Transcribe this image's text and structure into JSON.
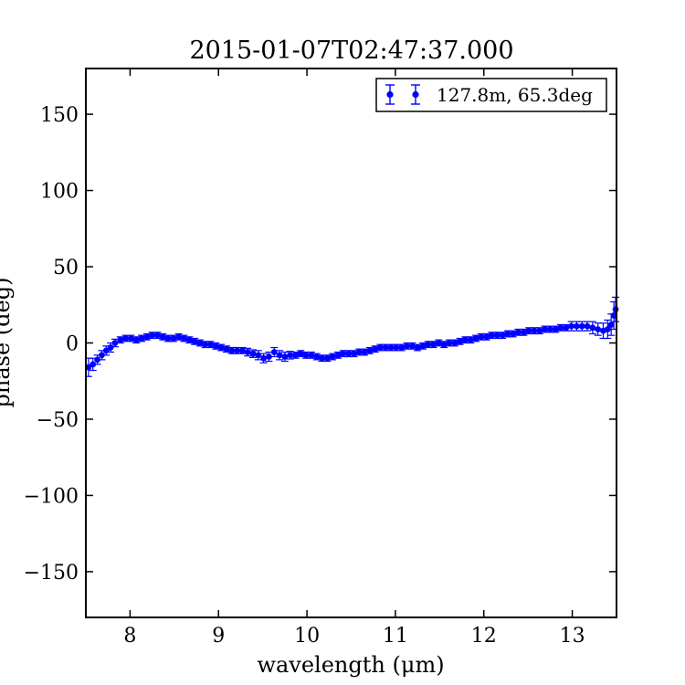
{
  "chart_data": {
    "type": "scatter",
    "title": "2015-01-07T02:47:37.000",
    "xlabel": "wavelength (μm)",
    "ylabel": "phase (deg)",
    "xlim": [
      7.5,
      13.5
    ],
    "ylim": [
      -180,
      180
    ],
    "xticks": [
      8,
      9,
      10,
      11,
      12,
      13
    ],
    "yticks": [
      -150,
      -100,
      -50,
      0,
      50,
      100,
      150
    ],
    "xtick_labels": [
      "8",
      "9",
      "10",
      "11",
      "12",
      "13"
    ],
    "ytick_labels": [
      "−150",
      "−100",
      "−50",
      "0",
      "50",
      "100",
      "150"
    ],
    "grid": false,
    "legend_position": "top-right",
    "color": "#0000ff",
    "series": [
      {
        "name": "127.8m, 65.3deg",
        "points": [
          [
            7.53,
            -16,
            6
          ],
          [
            7.58,
            -14,
            4
          ],
          [
            7.63,
            -11,
            3
          ],
          [
            7.68,
            -8,
            3
          ],
          [
            7.73,
            -5,
            3
          ],
          [
            7.78,
            -3,
            3
          ],
          [
            7.83,
            0,
            2.5
          ],
          [
            7.89,
            2,
            2
          ],
          [
            7.95,
            3,
            2
          ],
          [
            8.01,
            3,
            2
          ],
          [
            8.07,
            2,
            2
          ],
          [
            8.13,
            3,
            2
          ],
          [
            8.19,
            4,
            2
          ],
          [
            8.25,
            5,
            2
          ],
          [
            8.31,
            5,
            2
          ],
          [
            8.37,
            4,
            2
          ],
          [
            8.43,
            3,
            2
          ],
          [
            8.49,
            3,
            2
          ],
          [
            8.55,
            4,
            2
          ],
          [
            8.61,
            3,
            2
          ],
          [
            8.67,
            2,
            2
          ],
          [
            8.73,
            1,
            2
          ],
          [
            8.79,
            0,
            2
          ],
          [
            8.85,
            -1,
            2
          ],
          [
            8.91,
            -1,
            2
          ],
          [
            8.97,
            -2,
            2
          ],
          [
            9.03,
            -3,
            2
          ],
          [
            9.09,
            -4,
            2
          ],
          [
            9.15,
            -5,
            2
          ],
          [
            9.21,
            -5,
            2
          ],
          [
            9.27,
            -5,
            2
          ],
          [
            9.33,
            -6,
            2.5
          ],
          [
            9.39,
            -7,
            2.5
          ],
          [
            9.45,
            -8,
            3
          ],
          [
            9.51,
            -10,
            3
          ],
          [
            9.57,
            -9,
            3
          ],
          [
            9.63,
            -6,
            3
          ],
          [
            9.69,
            -8,
            3
          ],
          [
            9.75,
            -9,
            3
          ],
          [
            9.81,
            -8,
            2.5
          ],
          [
            9.87,
            -8,
            2
          ],
          [
            9.93,
            -7,
            2
          ],
          [
            9.99,
            -8,
            2
          ],
          [
            10.05,
            -8,
            2
          ],
          [
            10.11,
            -9,
            2
          ],
          [
            10.17,
            -10,
            2
          ],
          [
            10.23,
            -10,
            2
          ],
          [
            10.29,
            -9,
            2
          ],
          [
            10.35,
            -8,
            2
          ],
          [
            10.41,
            -7,
            2
          ],
          [
            10.47,
            -7,
            2
          ],
          [
            10.53,
            -7,
            2
          ],
          [
            10.59,
            -6,
            2
          ],
          [
            10.65,
            -6,
            2
          ],
          [
            10.71,
            -5,
            2
          ],
          [
            10.77,
            -4,
            2
          ],
          [
            10.83,
            -3,
            2
          ],
          [
            10.89,
            -3,
            2
          ],
          [
            10.95,
            -3,
            2
          ],
          [
            11.01,
            -3,
            2
          ],
          [
            11.07,
            -3,
            2
          ],
          [
            11.13,
            -2,
            2
          ],
          [
            11.19,
            -2,
            2
          ],
          [
            11.25,
            -3,
            2
          ],
          [
            11.31,
            -2,
            2
          ],
          [
            11.37,
            -1,
            2
          ],
          [
            11.43,
            -1,
            2
          ],
          [
            11.49,
            0,
            2
          ],
          [
            11.55,
            -1,
            2
          ],
          [
            11.61,
            0,
            2
          ],
          [
            11.67,
            0,
            2
          ],
          [
            11.73,
            1,
            2
          ],
          [
            11.79,
            2,
            2
          ],
          [
            11.85,
            2,
            2
          ],
          [
            11.91,
            3,
            2
          ],
          [
            11.97,
            4,
            2
          ],
          [
            12.03,
            4,
            2
          ],
          [
            12.09,
            5,
            2
          ],
          [
            12.15,
            5,
            2
          ],
          [
            12.21,
            5,
            2
          ],
          [
            12.27,
            6,
            2
          ],
          [
            12.33,
            6,
            2
          ],
          [
            12.39,
            7,
            2
          ],
          [
            12.45,
            7,
            2
          ],
          [
            12.51,
            8,
            2
          ],
          [
            12.57,
            8,
            2
          ],
          [
            12.63,
            8,
            2
          ],
          [
            12.69,
            9,
            2
          ],
          [
            12.75,
            9,
            2
          ],
          [
            12.81,
            9,
            2
          ],
          [
            12.87,
            10,
            2
          ],
          [
            12.93,
            10,
            2
          ],
          [
            12.99,
            11,
            3
          ],
          [
            13.05,
            11,
            3
          ],
          [
            13.11,
            11,
            3
          ],
          [
            13.17,
            11,
            3
          ],
          [
            13.23,
            10,
            4
          ],
          [
            13.29,
            9,
            4
          ],
          [
            13.35,
            8,
            5
          ],
          [
            13.4,
            9,
            6
          ],
          [
            13.44,
            12,
            7
          ],
          [
            13.47,
            18,
            9
          ],
          [
            13.49,
            22,
            8
          ]
        ]
      }
    ]
  }
}
